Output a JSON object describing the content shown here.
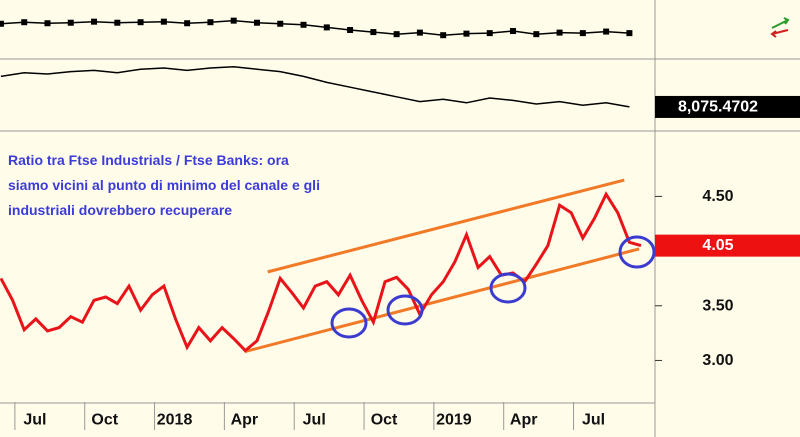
{
  "chart_data": [
    {
      "type": "line",
      "xlim": [
        -0.64,
        27.5
      ],
      "ylim": [
        0,
        100
      ],
      "markers": true,
      "x": [
        -0.6,
        0.4,
        1.4,
        2.4,
        3.4,
        4.4,
        5.4,
        6.4,
        7.4,
        8.4,
        9.4,
        10.4,
        11.4,
        12.4,
        13.4,
        14.4,
        15.4,
        16.4,
        17.4,
        18.4,
        19.4,
        20.4,
        21.4,
        22.4,
        23.4,
        24.4,
        25.4,
        26.4
      ],
      "series": [
        {
          "color": "#000000",
          "values": [
            62,
            65,
            63,
            64,
            66,
            64,
            65,
            66,
            63,
            65,
            68,
            64,
            62,
            60,
            55,
            50,
            46,
            42,
            45,
            40,
            43,
            44,
            48,
            42,
            45,
            44,
            47,
            44
          ]
        }
      ]
    },
    {
      "type": "line",
      "xlim": [
        -0.64,
        27.5
      ],
      "ylim": [
        7900,
        8450
      ],
      "last_label_color": "#000000",
      "x": [
        -0.6,
        0.4,
        1.4,
        2.4,
        3.4,
        4.4,
        5.4,
        6.4,
        7.4,
        8.4,
        9.4,
        10.4,
        11.4,
        12.4,
        13.4,
        14.4,
        15.4,
        16.4,
        17.4,
        18.4,
        19.4,
        20.4,
        21.4,
        22.4,
        23.4,
        24.4,
        25.4,
        26.4
      ],
      "series": [
        {
          "color": "#000000",
          "values": [
            8330,
            8360,
            8350,
            8370,
            8380,
            8360,
            8390,
            8400,
            8380,
            8400,
            8410,
            8390,
            8370,
            8330,
            8280,
            8240,
            8200,
            8160,
            8120,
            8140,
            8110,
            8150,
            8130,
            8100,
            8120,
            8090,
            8110,
            8075.4702
          ],
          "value_labels": [
            null,
            null,
            null,
            null,
            null,
            null,
            null,
            null,
            null,
            null,
            null,
            null,
            null,
            null,
            null,
            null,
            null,
            null,
            null,
            null,
            null,
            null,
            null,
            null,
            null,
            null,
            null,
            "8,075.4702"
          ]
        }
      ]
    },
    {
      "type": "line",
      "xlim": [
        -0.64,
        27.5
      ],
      "ylim": [
        2.62,
        5.08
      ],
      "last_label_color": "#ee1111",
      "annotation": [
        "Ratio tra Ftse Industrials / Ftse Banks: ora",
        "siamo vicini al punto di minimo del canale e gli",
        "industriali dovrebbero recuperare"
      ],
      "yticks": [
        {
          "value": 3,
          "label": "3.00"
        },
        {
          "value": 3.5,
          "label": "3.50"
        },
        {
          "value": 4.5,
          "label": "4.50"
        }
      ],
      "xticks": [
        {
          "value": 0,
          "label": "Jul"
        },
        {
          "value": 3,
          "label": "Oct"
        },
        {
          "value": 6,
          "label": "2018"
        },
        {
          "value": 9,
          "label": "Apr"
        },
        {
          "value": 12,
          "label": "Jul"
        },
        {
          "value": 15,
          "label": "Oct"
        },
        {
          "value": 18,
          "label": "2019"
        },
        {
          "value": 21,
          "label": "Apr"
        },
        {
          "value": 24,
          "label": "Jul"
        }
      ],
      "x": [
        -0.6,
        -0.1,
        0.4,
        0.9,
        1.4,
        1.9,
        2.4,
        2.9,
        3.4,
        3.9,
        4.4,
        4.9,
        5.4,
        5.9,
        6.4,
        6.9,
        7.4,
        7.9,
        8.4,
        8.9,
        9.4,
        9.9,
        10.4,
        10.9,
        11.4,
        11.9,
        12.4,
        12.9,
        13.4,
        13.9,
        14.4,
        14.9,
        15.4,
        15.9,
        16.4,
        16.9,
        17.4,
        17.9,
        18.4,
        18.9,
        19.4,
        19.9,
        20.4,
        20.9,
        21.4,
        21.9,
        22.4,
        22.9,
        23.4,
        23.9,
        24.4,
        24.9,
        25.4,
        25.9,
        26.4,
        26.9
      ],
      "series": [
        {
          "color": "#e8141a",
          "values": [
            3.75,
            3.55,
            3.28,
            3.38,
            3.27,
            3.3,
            3.4,
            3.35,
            3.55,
            3.58,
            3.52,
            3.68,
            3.46,
            3.6,
            3.68,
            3.38,
            3.12,
            3.3,
            3.18,
            3.3,
            3.2,
            3.09,
            3.18,
            3.45,
            3.75,
            3.62,
            3.48,
            3.68,
            3.72,
            3.6,
            3.78,
            3.55,
            3.35,
            3.72,
            3.76,
            3.65,
            3.42,
            3.6,
            3.72,
            3.9,
            4.15,
            3.85,
            3.95,
            3.78,
            3.8,
            3.72,
            3.88,
            4.05,
            4.42,
            4.35,
            4.12,
            4.3,
            4.52,
            4.35,
            4.08,
            4.05
          ]
        }
      ],
      "trendlines": [
        {
          "color": "#f07a28",
          "x": [
            10.86,
            26.18
          ],
          "y": [
            3.81,
            4.65
          ]
        },
        {
          "color": "#f07a28",
          "x": [
            9.87,
            26.82
          ],
          "y": [
            3.08,
            4.02
          ]
        }
      ]
    }
  ]
}
